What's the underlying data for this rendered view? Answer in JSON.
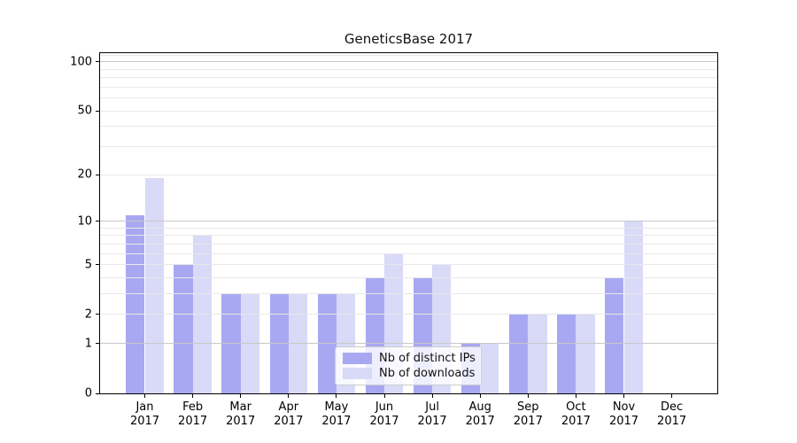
{
  "chart_data": {
    "type": "bar",
    "title": "GeneticsBase 2017",
    "categories": [
      "Jan",
      "Feb",
      "Mar",
      "Apr",
      "May",
      "Jun",
      "Jul",
      "Aug",
      "Sep",
      "Oct",
      "Nov",
      "Dec"
    ],
    "x_tick_year": "2017",
    "series": [
      {
        "name": "Nb of distinct IPs",
        "color": "#a8a8f2",
        "values": [
          11,
          5,
          3,
          3,
          3,
          4,
          4,
          1,
          2,
          2,
          4,
          0
        ]
      },
      {
        "name": "Nb of downloads",
        "color": "#d9d9f8",
        "values": [
          19,
          8,
          3,
          3,
          3,
          6,
          5,
          1,
          2,
          2,
          10,
          0
        ]
      }
    ],
    "yscale": "log1p",
    "ylim": [
      0,
      113
    ],
    "yticks_labeled": [
      0,
      1,
      2,
      5,
      10,
      20,
      50,
      100
    ],
    "gridlines_major": [
      1,
      10,
      100
    ],
    "gridlines_minor": [
      2,
      3,
      4,
      5,
      6,
      7,
      8,
      9,
      20,
      30,
      40,
      50,
      60,
      70,
      80,
      90,
      110
    ],
    "grid_on": true,
    "grid_above_bars": true,
    "legend_position": "lower center",
    "colors": {
      "major_grid": "#c8c8c8",
      "minor_grid": "#e9e9e9",
      "axis": "#000000",
      "text": "#111111",
      "background": "#ffffff"
    }
  }
}
